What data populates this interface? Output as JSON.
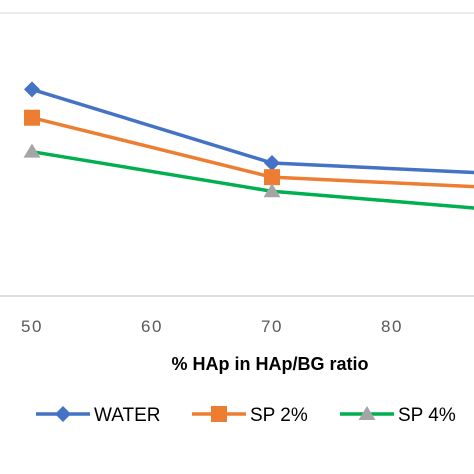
{
  "chart_data": {
    "type": "line",
    "xlabel": "% HAp in HAp/BG ratio",
    "x_ticks": [
      "50",
      "60",
      "70",
      "80"
    ],
    "xlim": [
      50,
      90
    ],
    "ylim": [
      0,
      100
    ],
    "grid": "horizontal",
    "legend_position": "bottom",
    "series": [
      {
        "name": "WATER",
        "color": "#4472C4",
        "marker": "diamond",
        "x": [
          50,
          70,
          90
        ],
        "y": [
          73,
          47,
          43
        ]
      },
      {
        "name": "SP 2%",
        "color": "#ED7D31",
        "marker": "square",
        "x": [
          50,
          70,
          90
        ],
        "y": [
          63,
          42,
          38
        ]
      },
      {
        "name": "SP 4%",
        "color": "#00B050",
        "marker": "triangle",
        "marker_color": "#A5A5A5",
        "x": [
          50,
          70,
          90
        ],
        "y": [
          51,
          37,
          30
        ]
      }
    ]
  }
}
